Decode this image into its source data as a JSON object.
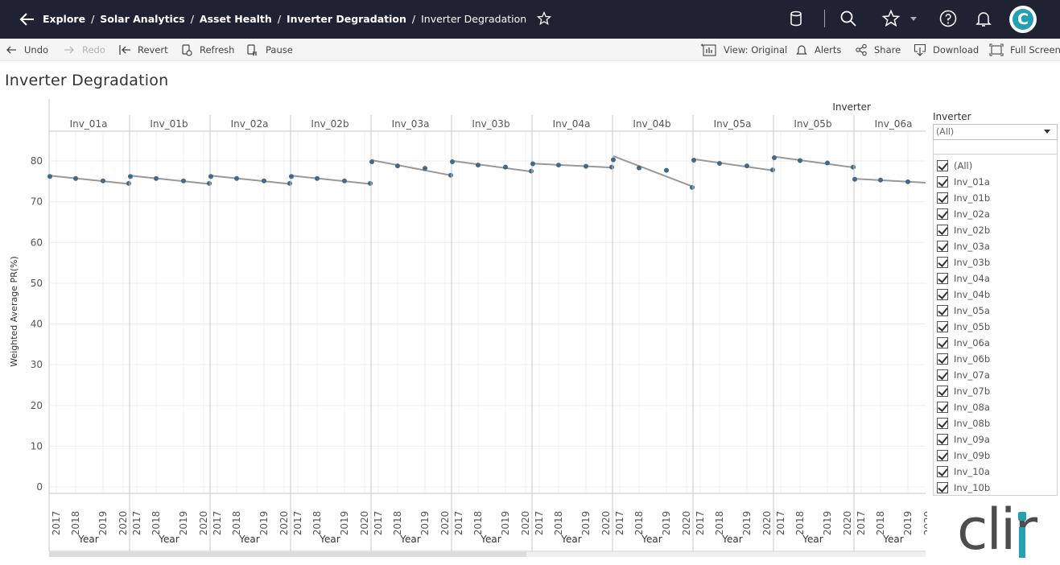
{
  "nav": {
    "breadcrumbs": [
      "Explore",
      "Solar Analytics",
      "Asset Health",
      "Inverter Degradation",
      "Inverter Degradation"
    ],
    "separator": "/",
    "avatar_letter": "C"
  },
  "toolbar": {
    "undo": "Undo",
    "redo": "Redo",
    "revert": "Revert",
    "refresh": "Refresh",
    "pause": "Pause",
    "view_original": "View: Original",
    "alerts": "Alerts",
    "share": "Share",
    "download": "Download",
    "full_screen": "Full Screen"
  },
  "page_title": "Inverter Degradation",
  "filter": {
    "title": "Inverter",
    "selected": "(All)",
    "items": [
      "(All)",
      "Inv_01a",
      "Inv_01b",
      "Inv_02a",
      "Inv_02b",
      "Inv_03a",
      "Inv_03b",
      "Inv_04a",
      "Inv_04b",
      "Inv_05a",
      "Inv_05b",
      "Inv_06a",
      "Inv_06b",
      "Inv_07a",
      "Inv_07b",
      "Inv_08a",
      "Inv_08b",
      "Inv_09a",
      "Inv_09b",
      "Inv_10a",
      "Inv_10b"
    ]
  },
  "logo_text": "clir",
  "chart_data": {
    "type": "scatter",
    "title": "",
    "header": "Inverter",
    "ylabel": "Weighted Average PR(%)",
    "xlabel": "Year",
    "ylim": [
      0,
      88
    ],
    "yticks": [
      0,
      10,
      20,
      30,
      40,
      50,
      60,
      70,
      80
    ],
    "x": [
      "2017",
      "2018",
      "2019",
      "2020"
    ],
    "trend_lines": true,
    "point_color": "#3d6a8f",
    "line_color": "#999999",
    "panels": [
      {
        "name": "Inv_01a",
        "values": [
          76.2,
          75.7,
          75.1,
          74.5
        ]
      },
      {
        "name": "Inv_01b",
        "values": [
          76.2,
          75.7,
          75.1,
          74.5
        ]
      },
      {
        "name": "Inv_02a",
        "values": [
          76.2,
          75.7,
          75.1,
          74.5
        ]
      },
      {
        "name": "Inv_02b",
        "values": [
          76.2,
          75.7,
          75.1,
          74.5
        ]
      },
      {
        "name": "Inv_03a",
        "values": [
          79.8,
          78.8,
          78.2,
          76.5
        ]
      },
      {
        "name": "Inv_03b",
        "values": [
          79.8,
          79.0,
          78.5,
          77.5
        ]
      },
      {
        "name": "Inv_04a",
        "values": [
          79.3,
          79.0,
          78.7,
          78.5
        ]
      },
      {
        "name": "Inv_04b",
        "values": [
          80.3,
          78.3,
          77.7,
          73.5
        ]
      },
      {
        "name": "Inv_05a",
        "values": [
          80.2,
          79.4,
          78.8,
          77.8
        ]
      },
      {
        "name": "Inv_05b",
        "values": [
          80.8,
          80.1,
          79.5,
          78.5
        ]
      },
      {
        "name": "Inv_06a",
        "values": [
          75.5,
          75.3,
          74.9,
          null
        ]
      }
    ]
  }
}
